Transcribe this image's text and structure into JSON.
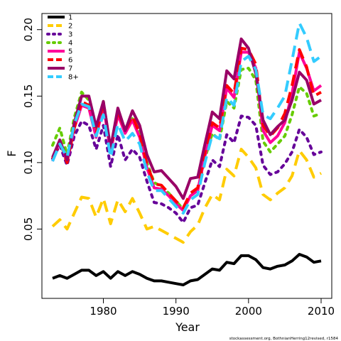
{
  "chart_data": {
    "type": "line",
    "xlabel": "Year",
    "ylabel": "F",
    "footnote": "stockassessment.org, BothnianHerring12revised, r1584",
    "xlim": [
      1973,
      2010
    ],
    "ylim": [
      0.0,
      0.21
    ],
    "xticks": [
      1980,
      1990,
      2000,
      2010
    ],
    "yticks": [
      0.05,
      0.1,
      0.15,
      0.2
    ],
    "ytick_labels": [
      "0.05",
      "0.10",
      "0.15",
      "0.20"
    ],
    "grid": false,
    "legend_position": "top-left",
    "x": [
      1973,
      1974,
      1975,
      1976,
      1977,
      1978,
      1979,
      1980,
      1981,
      1982,
      1983,
      1984,
      1985,
      1986,
      1987,
      1988,
      1989,
      1990,
      1991,
      1992,
      1993,
      1994,
      1995,
      1996,
      1997,
      1998,
      1999,
      2000,
      2001,
      2002,
      2003,
      2004,
      2005,
      2006,
      2007,
      2008,
      2009,
      2010
    ],
    "series": [
      {
        "name": "1",
        "color": "#000000",
        "dash": "solid",
        "values": [
          0.013,
          0.015,
          0.013,
          0.016,
          0.019,
          0.019,
          0.015,
          0.018,
          0.013,
          0.018,
          0.015,
          0.018,
          0.016,
          0.013,
          0.011,
          0.011,
          0.01,
          0.009,
          0.008,
          0.011,
          0.012,
          0.016,
          0.02,
          0.019,
          0.025,
          0.024,
          0.03,
          0.03,
          0.027,
          0.021,
          0.02,
          0.022,
          0.023,
          0.026,
          0.031,
          0.029,
          0.025,
          0.026
        ]
      },
      {
        "name": "2",
        "color": "#FFCC00",
        "dash": "dash",
        "values": [
          0.052,
          0.057,
          0.05,
          0.062,
          0.074,
          0.073,
          0.059,
          0.073,
          0.054,
          0.072,
          0.063,
          0.073,
          0.062,
          0.05,
          0.052,
          0.049,
          0.046,
          0.043,
          0.04,
          0.048,
          0.053,
          0.066,
          0.076,
          0.072,
          0.095,
          0.09,
          0.11,
          0.104,
          0.096,
          0.076,
          0.072,
          0.077,
          0.081,
          0.09,
          0.109,
          0.102,
          0.089,
          0.092
        ]
      },
      {
        "name": "3",
        "color": "#660099",
        "dash": "dot",
        "values": [
          0.103,
          0.113,
          0.098,
          0.12,
          0.131,
          0.128,
          0.11,
          0.128,
          0.097,
          0.121,
          0.102,
          0.11,
          0.104,
          0.086,
          0.07,
          0.069,
          0.066,
          0.062,
          0.055,
          0.066,
          0.068,
          0.085,
          0.102,
          0.097,
          0.121,
          0.115,
          0.135,
          0.134,
          0.128,
          0.098,
          0.091,
          0.093,
          0.099,
          0.108,
          0.125,
          0.119,
          0.106,
          0.108
        ]
      },
      {
        "name": "4",
        "color": "#66CC00",
        "dash": "dot",
        "values": [
          0.113,
          0.126,
          0.106,
          0.134,
          0.153,
          0.147,
          0.125,
          0.146,
          0.11,
          0.138,
          0.125,
          0.133,
          0.124,
          0.1,
          0.085,
          0.082,
          0.077,
          0.071,
          0.065,
          0.075,
          0.079,
          0.103,
          0.122,
          0.117,
          0.146,
          0.141,
          0.17,
          0.171,
          0.162,
          0.116,
          0.108,
          0.114,
          0.12,
          0.136,
          0.157,
          0.152,
          0.135,
          0.137
        ]
      },
      {
        "name": "5",
        "color": "#FF0099",
        "dash": "solid",
        "values": [
          0.101,
          0.117,
          0.101,
          0.126,
          0.143,
          0.141,
          0.119,
          0.143,
          0.108,
          0.136,
          0.122,
          0.132,
          0.119,
          0.096,
          0.081,
          0.08,
          0.075,
          0.069,
          0.064,
          0.075,
          0.079,
          0.105,
          0.128,
          0.124,
          0.156,
          0.149,
          0.183,
          0.183,
          0.171,
          0.124,
          0.115,
          0.12,
          0.13,
          0.152,
          0.183,
          0.171,
          0.154,
          0.158
        ]
      },
      {
        "name": "6",
        "color": "#FF0000",
        "dash": "dash",
        "values": [
          0.103,
          0.116,
          0.1,
          0.126,
          0.146,
          0.143,
          0.122,
          0.145,
          0.109,
          0.139,
          0.124,
          0.135,
          0.122,
          0.099,
          0.084,
          0.083,
          0.077,
          0.071,
          0.066,
          0.077,
          0.081,
          0.108,
          0.13,
          0.126,
          0.158,
          0.152,
          0.186,
          0.185,
          0.174,
          0.128,
          0.12,
          0.126,
          0.137,
          0.158,
          0.185,
          0.172,
          0.15,
          0.153
        ]
      },
      {
        "name": "7",
        "color": "#990066",
        "dash": "solid",
        "values": [
          0.104,
          0.117,
          0.102,
          0.13,
          0.15,
          0.15,
          0.127,
          0.146,
          0.111,
          0.141,
          0.124,
          0.139,
          0.128,
          0.106,
          0.093,
          0.094,
          0.088,
          0.082,
          0.073,
          0.088,
          0.089,
          0.114,
          0.138,
          0.133,
          0.169,
          0.163,
          0.193,
          0.186,
          0.167,
          0.132,
          0.121,
          0.127,
          0.132,
          0.147,
          0.168,
          0.162,
          0.144,
          0.147
        ]
      },
      {
        "name": "8+",
        "color": "#33CCFF",
        "dash": "dash",
        "values": [
          0.101,
          0.114,
          0.104,
          0.129,
          0.144,
          0.142,
          0.12,
          0.136,
          0.104,
          0.129,
          0.116,
          0.122,
          0.114,
          0.093,
          0.079,
          0.079,
          0.073,
          0.067,
          0.062,
          0.072,
          0.076,
          0.1,
          0.121,
          0.118,
          0.149,
          0.143,
          0.176,
          0.18,
          0.17,
          0.136,
          0.133,
          0.141,
          0.15,
          0.177,
          0.205,
          0.194,
          0.176,
          0.18
        ]
      }
    ]
  }
}
